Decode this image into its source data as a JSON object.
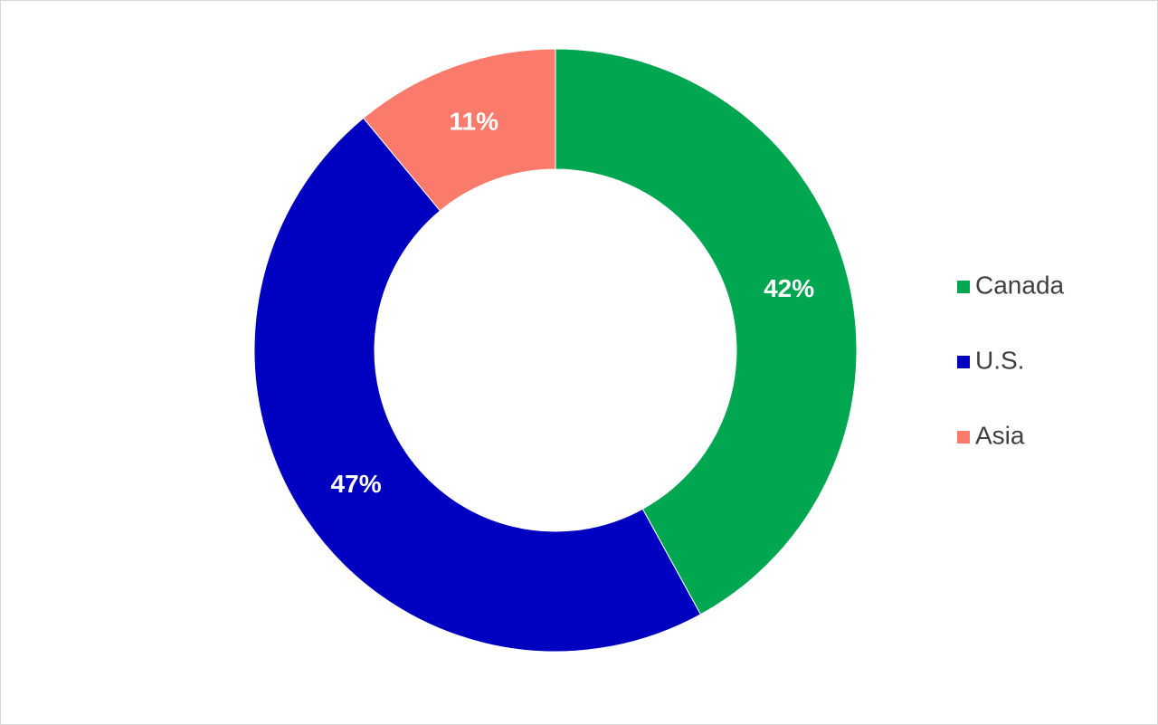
{
  "chart_data": {
    "type": "donut",
    "categories": [
      "Canada",
      "U.S.",
      "Asia"
    ],
    "values": [
      42,
      47,
      11
    ],
    "value_labels": [
      "42%",
      "47%",
      "11%"
    ],
    "colors": [
      "#00a650",
      "#0000c0",
      "#fa7b6b"
    ],
    "legend": "right"
  }
}
